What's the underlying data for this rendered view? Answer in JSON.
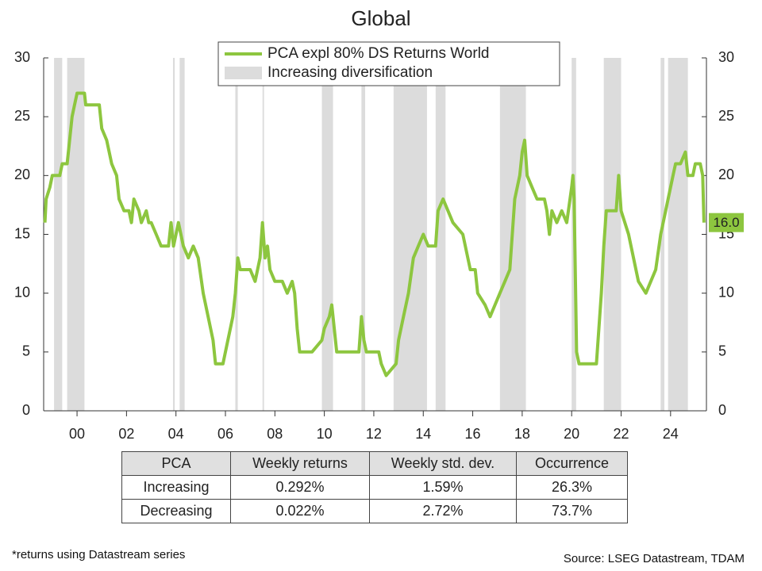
{
  "chart_data": {
    "type": "line",
    "title": "Global",
    "xlim": [
      1998.65,
      2025.45
    ],
    "xticks": [
      {
        "value": 2000,
        "label": "00"
      },
      {
        "value": 2002,
        "label": "02"
      },
      {
        "value": 2004,
        "label": "04"
      },
      {
        "value": 2006,
        "label": "06"
      },
      {
        "value": 2008,
        "label": "08"
      },
      {
        "value": 2010,
        "label": "10"
      },
      {
        "value": 2012,
        "label": "12"
      },
      {
        "value": 2014,
        "label": "14"
      },
      {
        "value": 2016,
        "label": "16"
      },
      {
        "value": 2018,
        "label": "18"
      },
      {
        "value": 2020,
        "label": "20"
      },
      {
        "value": 2022,
        "label": "22"
      },
      {
        "value": 2024,
        "label": "24"
      }
    ],
    "ylim": [
      0,
      30
    ],
    "yticks": [
      0,
      5,
      10,
      15,
      20,
      25,
      30
    ],
    "y2lim": [
      0,
      30
    ],
    "y2ticks": [
      0,
      5,
      10,
      15,
      20,
      25,
      30
    ],
    "shading": {
      "name": "Increasing diversification",
      "color": "#dcdcdc",
      "spans": [
        [
          1999.07,
          1999.4
        ],
        [
          1999.6,
          2000.3
        ],
        [
          2003.88,
          2003.95
        ],
        [
          2004.15,
          2004.35
        ],
        [
          2006.4,
          2006.5
        ],
        [
          2007.5,
          2007.56
        ],
        [
          2009.9,
          2010.35
        ],
        [
          2011.5,
          2011.65
        ],
        [
          2012.8,
          2014.15
        ],
        [
          2014.5,
          2014.9
        ],
        [
          2017.1,
          2018.15
        ],
        [
          2020.0,
          2020.18
        ],
        [
          2021.3,
          2022.0
        ],
        [
          2023.6,
          2023.75
        ],
        [
          2023.9,
          2024.7
        ]
      ]
    },
    "series": [
      {
        "name": "PCA expl 80% DS Returns World",
        "color": "#8dc63f",
        "x": [
          1998.7,
          1998.75,
          1998.9,
          1999.0,
          1999.3,
          1999.4,
          1999.6,
          1999.7,
          1999.8,
          1999.9,
          2000.0,
          2000.3,
          2000.35,
          2000.9,
          2001.0,
          2001.2,
          2001.4,
          2001.6,
          2001.7,
          2001.9,
          2002.1,
          2002.2,
          2002.3,
          2002.5,
          2002.6,
          2002.8,
          2002.9,
          2003.0,
          2003.2,
          2003.4,
          2003.7,
          2003.8,
          2003.9,
          2004.1,
          2004.3,
          2004.5,
          2004.7,
          2004.9,
          2005.1,
          2005.3,
          2005.5,
          2005.6,
          2005.9,
          2006.0,
          2006.2,
          2006.3,
          2006.4,
          2006.5,
          2006.6,
          2007.0,
          2007.2,
          2007.4,
          2007.5,
          2007.6,
          2007.7,
          2007.8,
          2008.0,
          2008.3,
          2008.5,
          2008.7,
          2008.8,
          2008.9,
          2009.0,
          2009.5,
          2009.9,
          2010.0,
          2010.2,
          2010.3,
          2010.4,
          2010.5,
          2011.4,
          2011.5,
          2011.6,
          2011.7,
          2012.2,
          2012.3,
          2012.5,
          2012.9,
          2013.0,
          2013.2,
          2013.4,
          2013.6,
          2013.8,
          2014.0,
          2014.2,
          2014.5,
          2014.6,
          2014.8,
          2015.0,
          2015.2,
          2015.6,
          2015.9,
          2016.1,
          2016.2,
          2016.5,
          2016.7,
          2016.9,
          2017.1,
          2017.3,
          2017.5,
          2017.6,
          2017.7,
          2017.9,
          2018.0,
          2018.1,
          2018.2,
          2018.4,
          2018.6,
          2018.9,
          2019.0,
          2019.1,
          2019.2,
          2019.4,
          2019.6,
          2019.8,
          2020.0,
          2020.05,
          2020.1,
          2020.2,
          2020.3,
          2021.0,
          2021.2,
          2021.3,
          2021.4,
          2021.8,
          2021.9,
          2022.0,
          2022.3,
          2022.5,
          2022.7,
          2023.0,
          2023.2,
          2023.4,
          2023.6,
          2023.9,
          2024.1,
          2024.2,
          2024.4,
          2024.6,
          2024.7,
          2024.9,
          2025.0,
          2025.2,
          2025.3,
          2025.35
        ],
        "values": [
          16,
          18,
          19,
          20,
          20,
          21,
          21,
          23,
          25,
          26,
          27,
          27,
          26,
          26,
          24,
          23,
          21,
          20,
          18,
          17,
          17,
          16,
          18,
          17,
          16,
          17,
          16,
          16,
          15,
          14,
          14,
          16,
          14,
          16,
          14,
          13,
          14,
          13,
          10,
          8,
          6,
          4,
          4,
          5,
          7,
          8,
          10,
          13,
          12,
          12,
          11,
          13,
          16,
          13,
          14,
          12,
          11,
          11,
          10,
          11,
          10,
          7,
          5,
          5,
          6,
          7,
          8,
          9,
          7,
          5,
          5,
          8,
          6,
          5,
          5,
          4,
          3,
          4,
          6,
          8,
          10,
          13,
          14,
          15,
          14,
          14,
          17,
          18,
          17,
          16,
          15,
          12,
          12,
          10,
          9,
          8,
          9,
          10,
          11,
          12,
          15,
          18,
          20,
          22,
          23,
          20,
          19,
          18,
          18,
          17,
          15,
          17,
          16,
          17,
          16,
          19,
          20,
          18,
          5,
          4,
          4,
          10,
          14,
          17,
          17,
          20,
          17,
          15,
          13,
          11,
          10,
          11,
          12,
          15,
          18,
          20,
          21,
          21,
          22,
          20,
          20,
          21,
          21,
          20,
          16
        ]
      }
    ],
    "annotations": [
      {
        "x": 2025.35,
        "y": 16,
        "label": "16.0"
      }
    ]
  },
  "table": {
    "header": [
      "PCA",
      "Weekly returns",
      "Weekly std. dev.",
      "Occurrence"
    ],
    "rows": [
      [
        "Increasing",
        "0.292%",
        "1.59%",
        "26.3%"
      ],
      [
        "Decreasing",
        "0.022%",
        "2.72%",
        "73.7%"
      ]
    ]
  },
  "footnote": "*returns using Datastream series",
  "source": "Source: LSEG Datastream, TDAM"
}
